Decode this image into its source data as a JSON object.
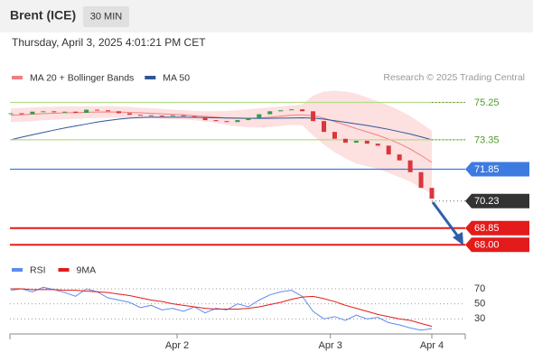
{
  "chart_data": {
    "type": "candlestick",
    "title": "Brent (ICE)",
    "timeframe": "30 MIN",
    "subtitle": "Thursday, April 3, 2025 4:01:21 PM CET",
    "credit": "Research © 2025 Trading Central",
    "xlim": [
      0,
      39
    ],
    "xticks": [
      {
        "value": 15.4,
        "label": "Apr 2"
      },
      {
        "value": 29.6,
        "label": "Apr 3"
      },
      {
        "value": 39,
        "label": "Apr 4"
      }
    ],
    "ylim": [
      67.6,
      76.1
    ],
    "up_color": "#2e9e4a",
    "down_color": "#d9363e",
    "open": [
      74.68,
      74.7,
      74.65,
      74.78,
      74.8,
      74.75,
      74.78,
      74.72,
      74.88,
      74.85,
      74.8,
      74.7,
      74.62,
      74.6,
      74.58,
      74.55,
      74.6,
      74.55,
      74.5,
      74.35,
      74.3,
      74.25,
      74.35,
      74.45,
      74.65,
      74.8,
      74.85,
      74.9,
      74.8,
      74.3,
      73.75,
      73.4,
      73.2,
      73.3,
      73.15,
      73.05,
      72.6,
      72.3,
      71.7,
      70.9
    ],
    "close": [
      74.7,
      74.65,
      74.78,
      74.8,
      74.75,
      74.78,
      74.72,
      74.88,
      74.85,
      74.8,
      74.7,
      74.62,
      74.6,
      74.58,
      74.55,
      74.6,
      74.55,
      74.5,
      74.35,
      74.3,
      74.25,
      74.35,
      74.45,
      74.65,
      74.8,
      74.85,
      74.9,
      74.8,
      74.3,
      73.75,
      73.4,
      73.2,
      73.3,
      73.15,
      73.05,
      72.6,
      72.3,
      71.7,
      70.9,
      70.35
    ],
    "series": [
      {
        "name": "MA 20 + Bollinger Bands",
        "color": "#f08080",
        "band_color": "#fde0e0",
        "values": [
          74.6,
          74.62,
          74.65,
          74.68,
          74.7,
          74.72,
          74.73,
          74.75,
          74.76,
          74.77,
          74.76,
          74.74,
          74.72,
          74.7,
          74.67,
          74.64,
          74.62,
          74.58,
          74.54,
          74.5,
          74.46,
          74.44,
          74.44,
          74.46,
          74.5,
          74.55,
          74.6,
          74.62,
          74.58,
          74.45,
          74.28,
          74.1,
          73.92,
          73.75,
          73.58,
          73.38,
          73.15,
          72.88,
          72.55,
          72.2
        ],
        "upper": [
          74.95,
          74.97,
          75.0,
          75.02,
          75.03,
          75.05,
          75.05,
          75.06,
          75.06,
          75.06,
          75.05,
          75.02,
          74.98,
          74.95,
          74.92,
          74.88,
          74.85,
          74.82,
          74.8,
          74.8,
          74.82,
          74.85,
          74.9,
          74.95,
          75.0,
          75.05,
          75.1,
          75.15,
          75.6,
          75.8,
          75.85,
          75.8,
          75.7,
          75.5,
          75.3,
          75.1,
          74.85,
          74.55,
          74.2,
          73.8
        ],
        "lower": [
          74.25,
          74.27,
          74.3,
          74.34,
          74.37,
          74.39,
          74.41,
          74.44,
          74.46,
          74.48,
          74.47,
          74.46,
          74.46,
          74.45,
          74.42,
          74.4,
          74.39,
          74.34,
          74.28,
          74.2,
          74.1,
          74.03,
          73.98,
          73.97,
          74.0,
          74.05,
          74.1,
          74.09,
          73.56,
          73.1,
          72.71,
          72.4,
          72.14,
          72.0,
          71.86,
          71.66,
          71.45,
          71.21,
          70.9,
          70.6
        ]
      },
      {
        "name": "MA 50",
        "color": "#2f5597",
        "values": [
          73.35,
          73.48,
          73.6,
          73.72,
          73.84,
          73.95,
          74.05,
          74.15,
          74.25,
          74.33,
          74.4,
          74.45,
          74.48,
          74.5,
          74.5,
          74.5,
          74.5,
          74.49,
          74.48,
          74.47,
          74.46,
          74.45,
          74.44,
          74.44,
          74.44,
          74.45,
          74.46,
          74.47,
          74.45,
          74.4,
          74.32,
          74.24,
          74.16,
          74.08,
          73.98,
          73.88,
          73.76,
          73.64,
          73.5,
          73.35
        ]
      }
    ],
    "levels": [
      {
        "value": 75.25,
        "color": "#b5dc8a",
        "text_color": "#4f9a2a",
        "style": "line"
      },
      {
        "value": 73.35,
        "color": "#b5dc8a",
        "text_color": "#4f9a2a",
        "style": "line"
      },
      {
        "value": 71.85,
        "color": "#3d7be0",
        "text_color": "#ffffff",
        "style": "box"
      },
      {
        "value": 70.23,
        "color": "#333333",
        "text_color": "#ffffff",
        "style": "dotted"
      },
      {
        "value": 68.85,
        "color": "#e31b1b",
        "text_color": "#ffffff",
        "style": "box"
      },
      {
        "value": 68,
        "label": "68.00",
        "color": "#e31b1b",
        "text_color": "#ffffff",
        "style": "box"
      }
    ],
    "rsi": {
      "ylim": [
        10,
        82
      ],
      "yticks": [
        70,
        50,
        30
      ],
      "series": [
        {
          "name": "RSI",
          "color": "#5b8def",
          "values": [
            68,
            70,
            66,
            72,
            69,
            65,
            60,
            70,
            66,
            58,
            55,
            52,
            45,
            48,
            42,
            44,
            40,
            46,
            38,
            44,
            42,
            50,
            46,
            55,
            62,
            66,
            68,
            60,
            40,
            30,
            33,
            28,
            35,
            30,
            32,
            25,
            22,
            18,
            15,
            17
          ]
        },
        {
          "name": "9MA",
          "color": "#e31b1b",
          "values": [
            70,
            70,
            69,
            69,
            69,
            68,
            68,
            67,
            66,
            65,
            63,
            61,
            58,
            55,
            53,
            50,
            48,
            46,
            44,
            43,
            43,
            43,
            44,
            46,
            49,
            52,
            56,
            59,
            60,
            57,
            53,
            48,
            44,
            40,
            36,
            33,
            30,
            28,
            24,
            20
          ]
        }
      ]
    }
  }
}
